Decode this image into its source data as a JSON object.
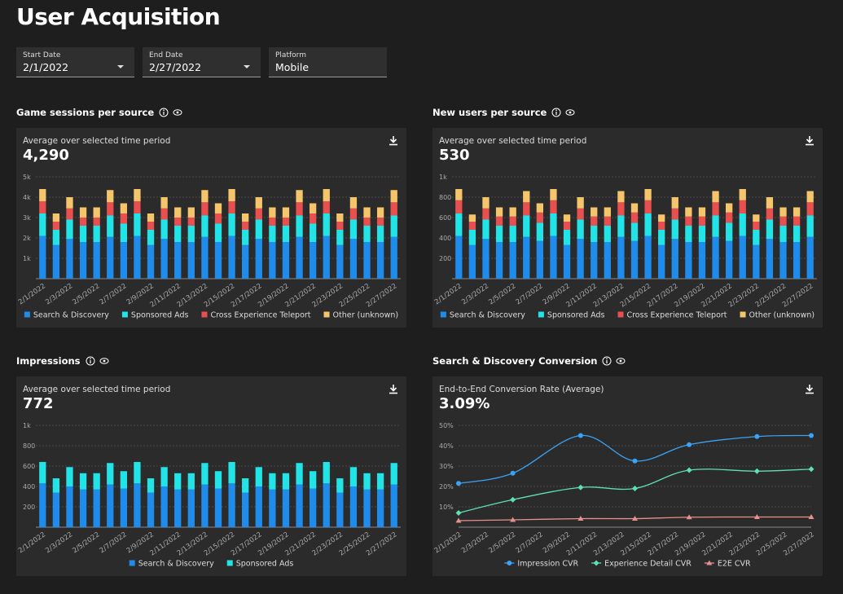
{
  "header": {
    "title": "User Acquisition"
  },
  "filters": [
    {
      "label": "Start Date",
      "value": "2/1/2022"
    },
    {
      "label": "End Date",
      "value": "2/27/2022"
    },
    {
      "label": "Platform",
      "value": "Mobile"
    }
  ],
  "chart_data": [
    {
      "type": "bar",
      "stacked": true,
      "title": "Game sessions per source",
      "subtitle": "Average over selected time period",
      "summary": "4,290",
      "categories": [
        "2/1/2022",
        null,
        "2/3/2022",
        null,
        "2/5/2022",
        null,
        "2/7/2022",
        null,
        "2/9/2022",
        null,
        "2/11/2022",
        null,
        "2/13/2022",
        null,
        "2/15/2022",
        null,
        "2/17/2022",
        null,
        "2/19/2022",
        null,
        "2/21/2022",
        null,
        "2/23/2022",
        null,
        "2/25/2022",
        null,
        "2/27/2022"
      ],
      "series": [
        {
          "name": "Search & Discovery",
          "color": "#1f8ceb",
          "values": [
            2100,
            1650,
            1950,
            1800,
            1800,
            2050,
            1800,
            2100,
            1650,
            1950,
            1800,
            1800,
            2050,
            1800,
            2100,
            1650,
            1950,
            1800,
            1800,
            2050,
            1800,
            2100,
            1650,
            1950,
            1800,
            1800,
            2050
          ]
        },
        {
          "name": "Sponsored Ads",
          "color": "#22e3e6",
          "values": [
            1100,
            750,
            950,
            800,
            800,
            1050,
            900,
            1100,
            750,
            950,
            800,
            800,
            1050,
            900,
            1100,
            750,
            950,
            800,
            800,
            1050,
            900,
            1100,
            750,
            950,
            800,
            800,
            1050
          ]
        },
        {
          "name": "Cross Experience Teleport",
          "color": "#e8504f",
          "values": [
            600,
            400,
            550,
            400,
            400,
            650,
            500,
            600,
            400,
            550,
            400,
            400,
            650,
            500,
            600,
            400,
            550,
            400,
            400,
            650,
            500,
            600,
            400,
            550,
            400,
            400,
            650
          ]
        },
        {
          "name": "Other (unknown)",
          "color": "#f5c56b",
          "values": [
            600,
            400,
            550,
            500,
            500,
            600,
            500,
            600,
            400,
            550,
            500,
            500,
            600,
            500,
            600,
            400,
            550,
            500,
            500,
            600,
            500,
            600,
            400,
            550,
            500,
            500,
            600
          ]
        }
      ],
      "ylim": [
        0,
        5000
      ],
      "yticks": [
        {
          "value": 1000,
          "label": "1k"
        },
        {
          "value": 2000,
          "label": "2k"
        },
        {
          "value": 3000,
          "label": "3k"
        },
        {
          "value": 4000,
          "label": "4k"
        },
        {
          "value": 5000,
          "label": "5k"
        }
      ],
      "grid": true,
      "legend": "bottom"
    },
    {
      "type": "bar",
      "stacked": true,
      "title": "New users per source",
      "subtitle": "Average over selected time period",
      "summary": "530",
      "categories": [
        "2/1/2022",
        null,
        "2/3/2022",
        null,
        "2/5/2022",
        null,
        "2/7/2022",
        null,
        "2/9/2022",
        null,
        "2/11/2022",
        null,
        "2/13/2022",
        null,
        "2/15/2022",
        null,
        "2/17/2022",
        null,
        "2/19/2022",
        null,
        "2/21/2022",
        null,
        "2/23/2022",
        null,
        "2/25/2022",
        null,
        "2/27/2022"
      ],
      "series": [
        {
          "name": "Search & Discovery",
          "color": "#1f8ceb",
          "values": [
            420,
            330,
            390,
            360,
            360,
            410,
            370,
            420,
            330,
            390,
            360,
            360,
            410,
            370,
            420,
            330,
            390,
            360,
            360,
            410,
            370,
            420,
            330,
            390,
            360,
            360,
            410
          ]
        },
        {
          "name": "Sponsored Ads",
          "color": "#22e3e6",
          "values": [
            220,
            150,
            190,
            160,
            160,
            210,
            180,
            220,
            150,
            190,
            160,
            160,
            210,
            180,
            220,
            150,
            190,
            160,
            160,
            210,
            180,
            220,
            150,
            190,
            160,
            160,
            210
          ]
        },
        {
          "name": "Cross Experience Teleport",
          "color": "#e8504f",
          "values": [
            130,
            80,
            110,
            90,
            90,
            130,
            100,
            130,
            80,
            110,
            90,
            90,
            130,
            100,
            130,
            80,
            110,
            90,
            90,
            130,
            100,
            130,
            80,
            110,
            90,
            90,
            130
          ]
        },
        {
          "name": "Other (unknown)",
          "color": "#f5c56b",
          "values": [
            110,
            70,
            110,
            90,
            90,
            110,
            90,
            110,
            70,
            110,
            90,
            90,
            110,
            90,
            110,
            70,
            110,
            90,
            90,
            110,
            90,
            110,
            70,
            110,
            90,
            90,
            110
          ]
        }
      ],
      "ylim": [
        0,
        1000
      ],
      "yticks": [
        200,
        400,
        600,
        800,
        {
          "value": 1000,
          "label": "1k"
        }
      ],
      "grid": true,
      "legend": "bottom"
    },
    {
      "type": "bar",
      "stacked": true,
      "title": "Impressions",
      "subtitle": "Average over selected time period",
      "summary": "772",
      "categories": [
        "2/1/2022",
        null,
        "2/3/2022",
        null,
        "2/5/2022",
        null,
        "2/7/2022",
        null,
        "2/9/2022",
        null,
        "2/11/2022",
        null,
        "2/13/2022",
        null,
        "2/15/2022",
        null,
        "2/17/2022",
        null,
        "2/19/2022",
        null,
        "2/21/2022",
        null,
        "2/23/2022",
        null,
        "2/25/2022",
        null,
        "2/27/2022"
      ],
      "series": [
        {
          "name": "Search & Discovery",
          "color": "#1f8ceb",
          "values": [
            430,
            340,
            400,
            370,
            370,
            420,
            380,
            430,
            340,
            400,
            370,
            370,
            420,
            380,
            430,
            340,
            400,
            370,
            370,
            420,
            380,
            430,
            340,
            400,
            370,
            370,
            420
          ]
        },
        {
          "name": "Sponsored Ads",
          "color": "#22e3e6",
          "values": [
            210,
            140,
            190,
            160,
            160,
            210,
            170,
            210,
            140,
            190,
            160,
            160,
            210,
            170,
            210,
            140,
            190,
            160,
            160,
            210,
            170,
            210,
            140,
            190,
            160,
            160,
            210
          ]
        }
      ],
      "ylim": [
        0,
        1000
      ],
      "yticks": [
        200,
        400,
        600,
        800,
        {
          "value": 1000,
          "label": "1k"
        }
      ],
      "grid": true,
      "legend": "bottom"
    },
    {
      "type": "line",
      "smooth": true,
      "title": "Search & Discovery Conversion",
      "subtitle": "End-to-End Conversion Rate (Average)",
      "summary": "3.09%",
      "xticks": [
        "2/1/2022",
        "2/3/2022",
        "2/5/2022",
        "2/7/2022",
        "2/9/2022",
        "2/11/2022",
        "2/13/2022",
        "2/15/2022",
        "2/17/2022",
        "2/19/2022",
        "2/21/2022",
        "2/23/2022",
        "2/25/2022",
        "2/27/2022"
      ],
      "x": [
        "2/1/2022",
        "2/5/2022",
        "2/10/2022",
        "2/14/2022",
        "2/18/2022",
        "2/23/2022",
        "2/27/2022"
      ],
      "series": [
        {
          "name": "Impression CVR",
          "color": "#3aa3f5",
          "marker": "circle",
          "values": [
            21.5,
            26.5,
            45,
            32.5,
            40.5,
            44.5,
            45
          ]
        },
        {
          "name": "Experience Detail CVR",
          "color": "#5ee0b0",
          "marker": "diamond",
          "values": [
            7,
            13.5,
            19.5,
            19,
            28,
            27.5,
            28.5
          ]
        },
        {
          "name": "E2E CVR",
          "color": "#e89090",
          "marker": "triangle",
          "values": [
            3.2,
            3.6,
            4.2,
            4.2,
            4.9,
            5,
            5
          ]
        }
      ],
      "ylim": [
        0,
        50
      ],
      "yticks": [
        {
          "value": 10,
          "label": "10%"
        },
        {
          "value": 20,
          "label": "20%"
        },
        {
          "value": 30,
          "label": "30%"
        },
        {
          "value": 40,
          "label": "40%"
        },
        {
          "value": 50,
          "label": "50%"
        }
      ],
      "grid": true,
      "legend": "bottom"
    }
  ]
}
